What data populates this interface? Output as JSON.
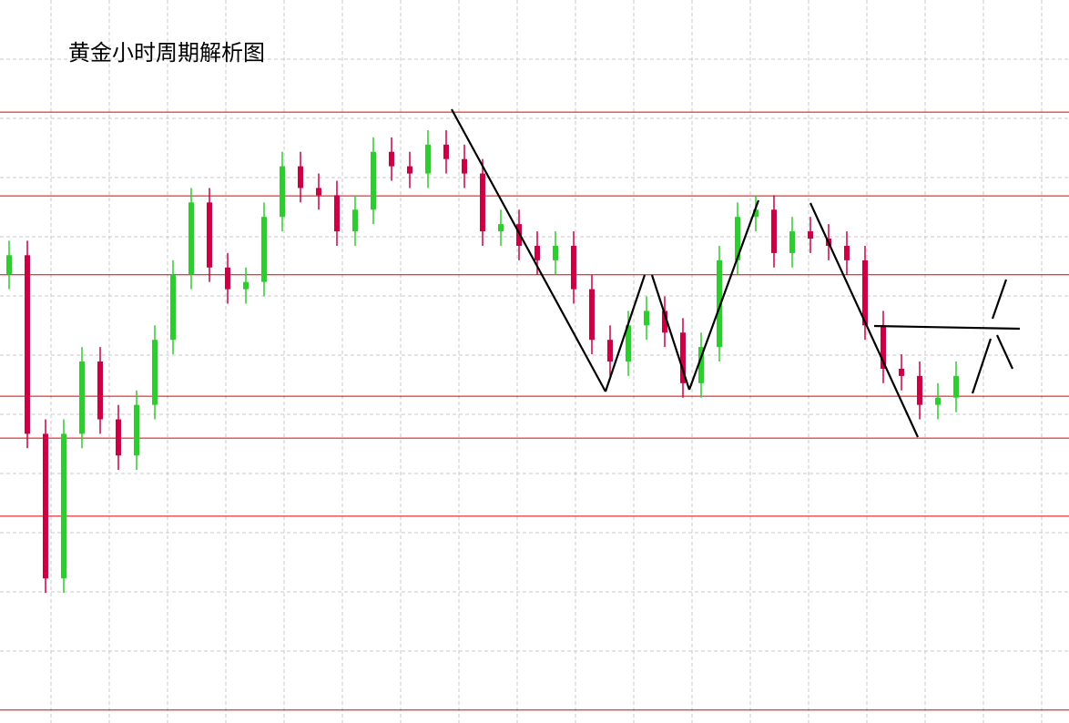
{
  "chart_data": {
    "type": "candlestick",
    "title": "黄金小时周期解析图",
    "ylim": [
      0,
      100
    ],
    "up_color": "#2fcc2f",
    "down_color": "#cc0044",
    "level_color": "#dd0000",
    "levels": [
      84.5,
      72.9,
      62,
      45.2,
      39.4,
      28.6,
      1.8
    ],
    "open": [
      62,
      64.7,
      40,
      20,
      40,
      50,
      42,
      37,
      44,
      53,
      62,
      72,
      63,
      60,
      61,
      70,
      77,
      74,
      73,
      68,
      71,
      79,
      77,
      76,
      80,
      78,
      76,
      68,
      69,
      66,
      64,
      66,
      60,
      53,
      50,
      55,
      57,
      54,
      47,
      52,
      64,
      70,
      71,
      65,
      68,
      67,
      66,
      64,
      55,
      49,
      48,
      44,
      45
    ],
    "high": [
      66.7,
      66.7,
      42,
      42,
      52,
      52,
      44,
      46,
      55,
      64,
      74,
      74,
      65,
      63,
      72,
      79,
      79,
      76,
      75,
      73,
      81,
      81,
      79,
      82,
      82,
      80,
      78,
      71,
      71,
      68,
      68,
      68,
      62,
      55,
      57,
      59,
      59,
      56,
      54,
      66,
      72,
      73,
      73,
      70,
      70,
      69,
      68,
      66,
      57,
      51,
      50,
      47,
      50
    ],
    "low": [
      60,
      38,
      18,
      18,
      38,
      40,
      35,
      35,
      42,
      51,
      60,
      61,
      58,
      58,
      59,
      68,
      72,
      71,
      66,
      66,
      69,
      75,
      74,
      74,
      76,
      74,
      66,
      66,
      64,
      62,
      62,
      58,
      51,
      48,
      48,
      53,
      52,
      45,
      45,
      50,
      62,
      68,
      63,
      63,
      65,
      64,
      62,
      53,
      47,
      46,
      42,
      42,
      43
    ],
    "close": [
      64.7,
      40,
      20,
      40,
      50,
      42,
      37,
      44,
      53,
      62,
      72,
      63,
      60,
      61,
      70,
      77,
      74,
      73,
      68,
      71,
      79,
      77,
      76,
      80,
      78,
      76,
      68,
      69,
      66,
      64,
      66,
      60,
      53,
      50,
      55,
      57,
      54,
      47,
      52,
      64,
      70,
      71,
      65,
      68,
      67,
      66,
      64,
      55,
      49,
      48,
      44,
      45,
      48
    ]
  }
}
